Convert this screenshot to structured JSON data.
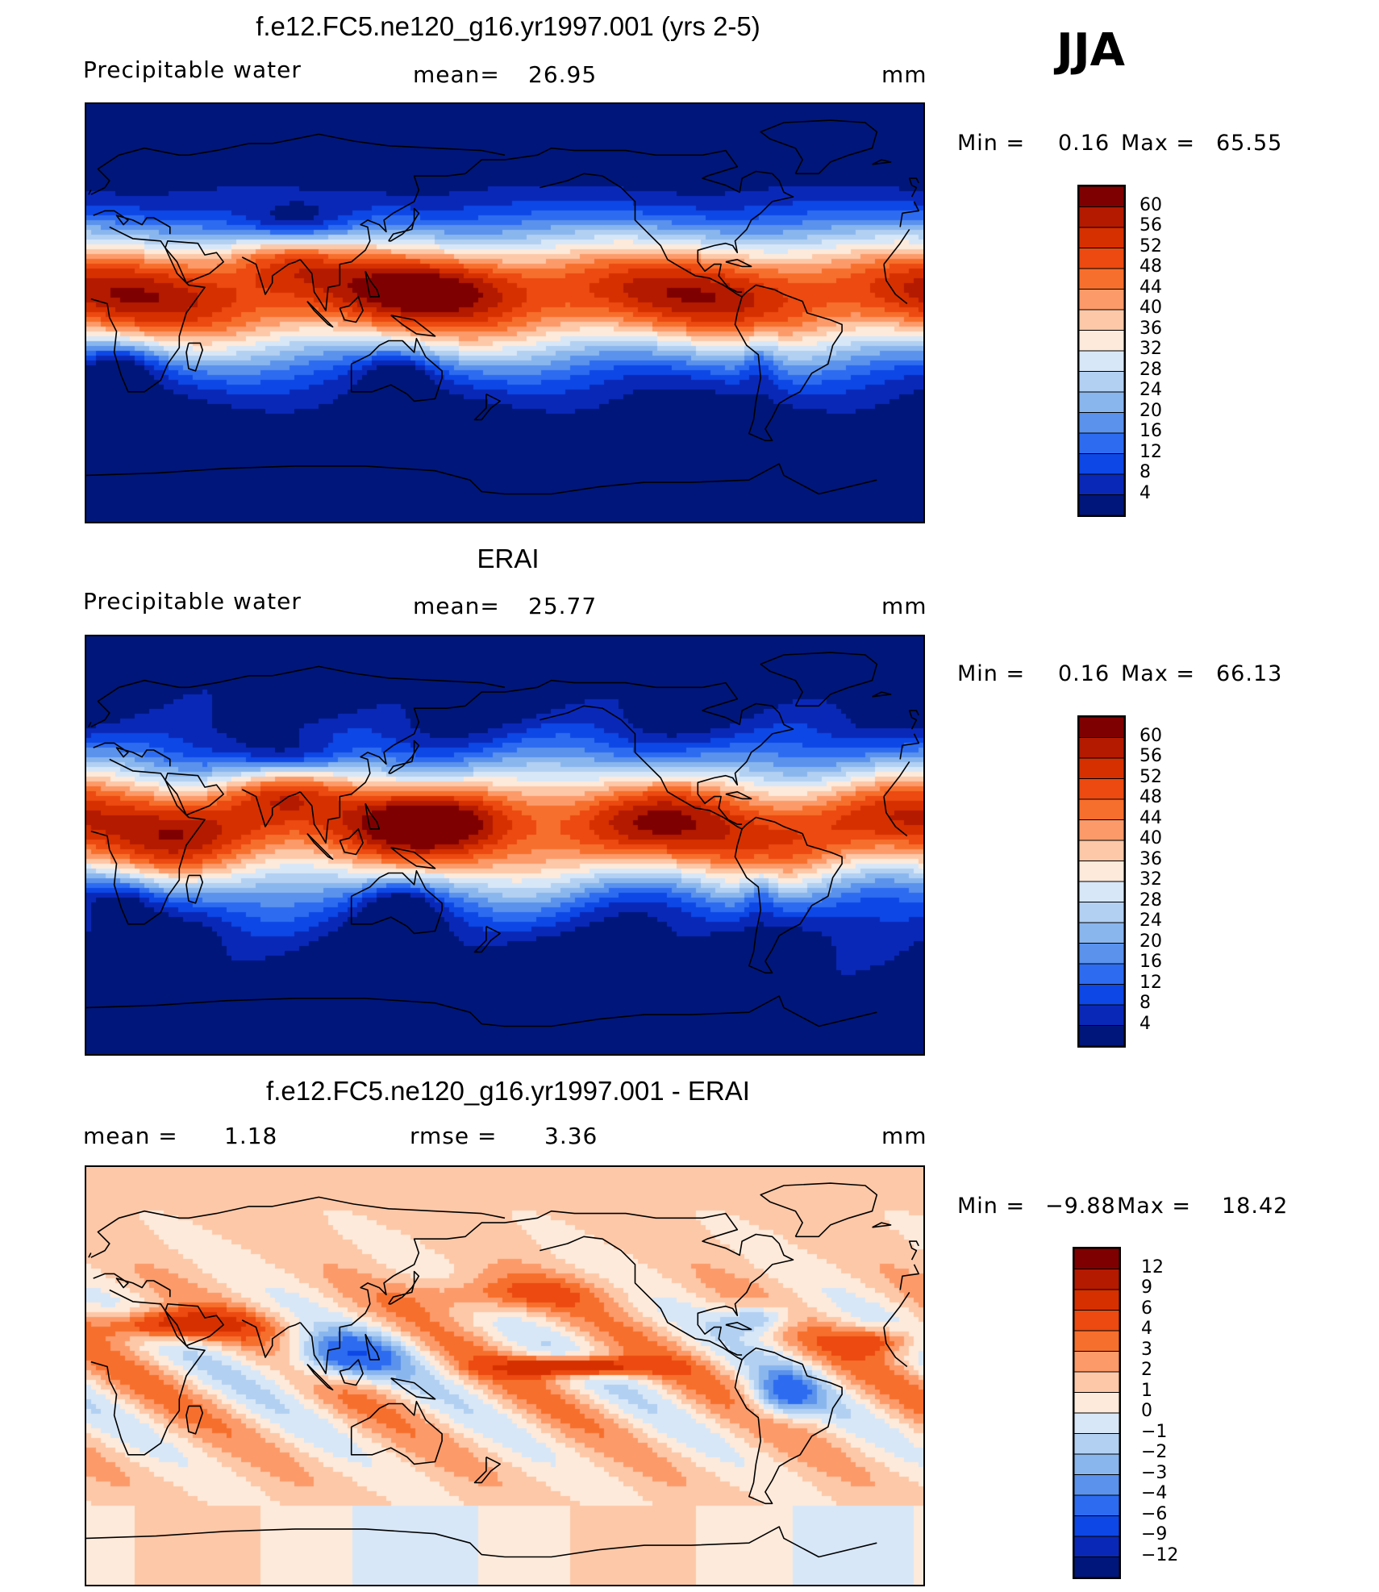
{
  "season": "JJA",
  "panels": [
    {
      "title": "f.e12.FC5.ne120_g16.yr1997.001 (yrs 2-5)",
      "variable": "Precipitable water",
      "stat1_label": "mean=",
      "stat1_value": "26.95",
      "stat2_label": "",
      "stat2_value": "",
      "units": "mm",
      "min_label": "Min =",
      "min_value": "0.16",
      "max_label": "Max =",
      "max_value": "65.55",
      "levels": [
        "60",
        "56",
        "52",
        "48",
        "44",
        "40",
        "36",
        "32",
        "28",
        "24",
        "20",
        "16",
        "12",
        "8",
        "4"
      ],
      "colors": [
        "#7f0000",
        "#b31a00",
        "#d63000",
        "#ec4a10",
        "#f76f2c",
        "#fc9a6a",
        "#fdc8a8",
        "#fdeadb",
        "#d8e7f7",
        "#b2d0f2",
        "#8ab6ee",
        "#5a92ec",
        "#2d6cf0",
        "#0d47e6",
        "#0a28b8",
        "#00167a"
      ]
    },
    {
      "title": "ERAI",
      "variable": "Precipitable water",
      "stat1_label": "mean=",
      "stat1_value": "25.77",
      "stat2_label": "",
      "stat2_value": "",
      "units": "mm",
      "min_label": "Min =",
      "min_value": "0.16",
      "max_label": "Max =",
      "max_value": "66.13",
      "levels": [
        "60",
        "56",
        "52",
        "48",
        "44",
        "40",
        "36",
        "32",
        "28",
        "24",
        "20",
        "16",
        "12",
        "8",
        "4"
      ],
      "colors": [
        "#7f0000",
        "#b31a00",
        "#d63000",
        "#ec4a10",
        "#f76f2c",
        "#fc9a6a",
        "#fdc8a8",
        "#fdeadb",
        "#d8e7f7",
        "#b2d0f2",
        "#8ab6ee",
        "#5a92ec",
        "#2d6cf0",
        "#0d47e6",
        "#0a28b8",
        "#00167a"
      ]
    },
    {
      "title": "f.e12.FC5.ne120_g16.yr1997.001 - ERAI",
      "variable": "",
      "stat1_label": "mean =",
      "stat1_value": "1.18",
      "stat2_label": "rmse =",
      "stat2_value": "3.36",
      "units": "mm",
      "min_label": "Min =",
      "min_value": "−9.88",
      "max_label": "Max =",
      "max_value": "18.42",
      "levels": [
        "12",
        "9",
        "6",
        "4",
        "3",
        "2",
        "1",
        "0",
        "−1",
        "−2",
        "−3",
        "−4",
        "−6",
        "−9",
        "−12"
      ],
      "colors": [
        "#7f0000",
        "#b31a00",
        "#d63000",
        "#ec4a10",
        "#f76f2c",
        "#fc9a6a",
        "#fdc8a8",
        "#fdeadb",
        "#d8e7f7",
        "#b2d0f2",
        "#8ab6ee",
        "#5a92ec",
        "#2d6cf0",
        "#0d47e6",
        "#0a28b8",
        "#00167a"
      ]
    }
  ]
}
